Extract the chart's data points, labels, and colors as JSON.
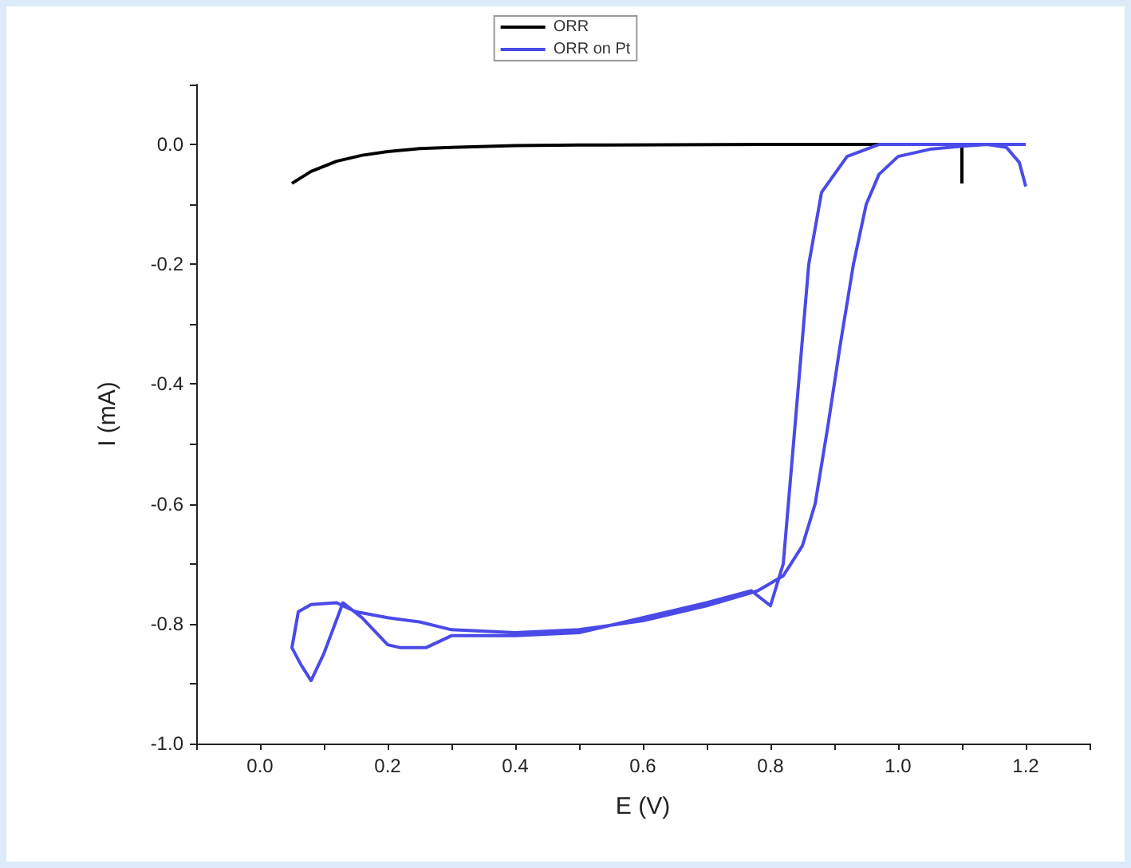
{
  "chart_data": {
    "type": "line",
    "xlabel": "E (V)",
    "ylabel": "I (mA)",
    "legend": "top",
    "grid": false,
    "marker": "none",
    "line_style": "solid",
    "xlim": [
      -0.1,
      1.3
    ],
    "xticks": [
      {
        "value": 0,
        "label": "0.0"
      },
      0.2,
      0.4,
      0.6,
      0.8,
      {
        "value": 1,
        "label": "1.0"
      },
      1.2
    ],
    "ylim": [
      -1.0,
      0.1
    ],
    "yticks": [
      {
        "value": -1,
        "label": "-1.0"
      },
      -0.8,
      -0.6,
      -0.4,
      -0.2,
      {
        "value": 0,
        "label": "0.0"
      }
    ],
    "series": [
      {
        "name": "ORR",
        "color": "#000000",
        "x": [
          0.05,
          0.08,
          0.12,
          0.16,
          0.2,
          0.25,
          0.3,
          0.4,
          0.5,
          0.8,
          1.1,
          1.1
        ],
        "values": [
          -0.065,
          -0.045,
          -0.028,
          -0.018,
          -0.012,
          -0.007,
          -0.005,
          -0.002,
          -0.001,
          0,
          0,
          -0.065
        ]
      },
      {
        "name": "ORR on Pt",
        "color": "#4a4ae8",
        "x": [
          1.2,
          1.19,
          1.17,
          1.14,
          1.1,
          1.05,
          1.0,
          0.97,
          0.95,
          0.93,
          0.91,
          0.89,
          0.87,
          0.85,
          0.82,
          0.78,
          0.7,
          0.6,
          0.5,
          0.4,
          0.3,
          0.25,
          0.2,
          0.15,
          0.12,
          0.08,
          0.06,
          0.05,
          0.065,
          0.08,
          0.1,
          0.13,
          0.16,
          0.2,
          0.22,
          0.26,
          0.3,
          0.4,
          0.5,
          0.6,
          0.7,
          0.77,
          0.8,
          0.82,
          0.84,
          0.86,
          0.88,
          0.92,
          0.97,
          1.0,
          1.1,
          1.2
        ],
        "values": [
          -0.07,
          -0.03,
          -0.005,
          0,
          -0.003,
          -0.008,
          -0.02,
          -0.05,
          -0.1,
          -0.2,
          -0.33,
          -0.47,
          -0.6,
          -0.67,
          -0.72,
          -0.745,
          -0.77,
          -0.795,
          -0.81,
          -0.815,
          -0.81,
          -0.797,
          -0.79,
          -0.78,
          -0.765,
          -0.768,
          -0.78,
          -0.84,
          -0.87,
          -0.895,
          -0.85,
          -0.765,
          -0.79,
          -0.835,
          -0.84,
          -0.84,
          -0.82,
          -0.82,
          -0.815,
          -0.79,
          -0.765,
          -0.745,
          -0.77,
          -0.7,
          -0.45,
          -0.2,
          -0.08,
          -0.02,
          0,
          0,
          0,
          0
        ]
      }
    ]
  }
}
